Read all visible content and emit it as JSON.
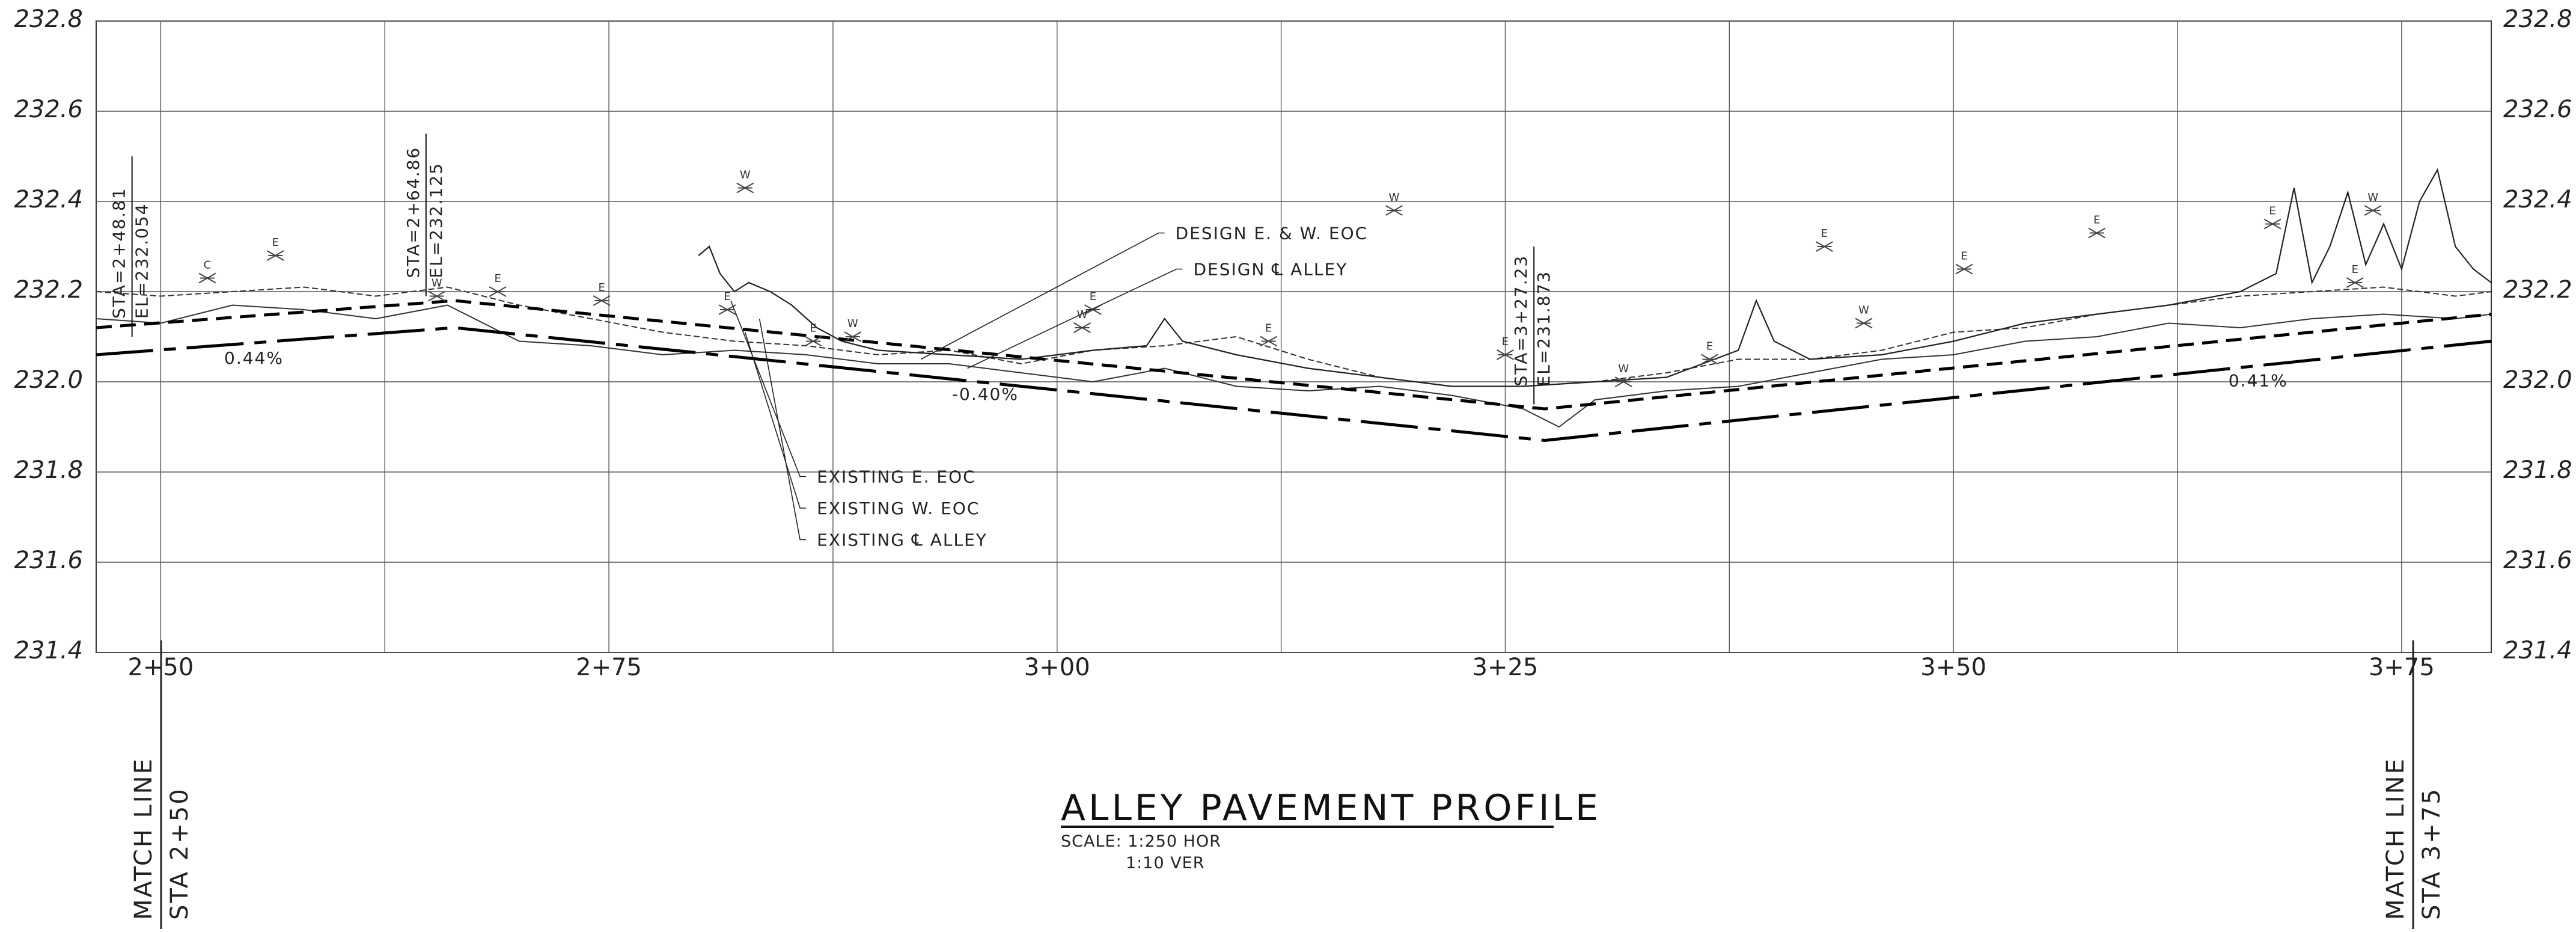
{
  "drawing": {
    "title": "ALLEY PAVEMENT PROFILE",
    "scale_line1": "SCALE: 1:250 HOR",
    "scale_line2": "1:10 VER",
    "match_left": {
      "line1": "MATCH LINE",
      "line2": "STA 2+50"
    },
    "match_right": {
      "line1": "MATCH LINE",
      "line2": "STA 3+75"
    }
  },
  "chart_data": {
    "type": "line",
    "ylim": [
      231.4,
      232.8
    ],
    "xlim": [
      248.2,
      315.0
    ],
    "y_ticks": [
      "232.8",
      "232.6",
      "232.4",
      "232.2",
      "232.0",
      "231.8",
      "231.6",
      "231.4"
    ],
    "y_tick_values": [
      232.8,
      232.6,
      232.4,
      232.2,
      232.0,
      231.8,
      231.6,
      231.4
    ],
    "x_ticks": [
      {
        "label": "2+50",
        "sta": 250
      },
      {
        "label": "2+75",
        "sta": 262.5
      },
      {
        "label": "3+00",
        "sta": 275
      },
      {
        "label": "3+25",
        "sta": 287.5
      },
      {
        "label": "3+50",
        "sta": 300
      },
      {
        "label": "3+75",
        "sta": 312.5
      }
    ],
    "x_gridlines": [
      250,
      256.25,
      262.5,
      268.75,
      275,
      281.25,
      287.5,
      293.75,
      300,
      306.25,
      312.5
    ],
    "grid": true,
    "series": [
      {
        "key": "design_eoc",
        "style": "dashed",
        "points": [
          [
            248.2,
            232.12
          ],
          [
            258.2,
            232.18
          ],
          [
            288.6,
            231.94
          ],
          [
            315.0,
            232.15
          ]
        ]
      },
      {
        "key": "design_cl",
        "style": "dashdot",
        "points": [
          [
            248.2,
            232.06
          ],
          [
            258.2,
            232.12
          ],
          [
            288.6,
            231.87
          ],
          [
            315.0,
            232.09
          ]
        ]
      }
    ],
    "slopes": [
      {
        "label": "0.44%",
        "sta": 252.6,
        "el": 232.04
      },
      {
        "label": "-0.40%",
        "sta": 273.0,
        "el": 231.96
      },
      {
        "label": "0.41%",
        "sta": 308.5,
        "el": 231.99
      }
    ],
    "pvi": [
      {
        "sta_label": "STA=2+48.81",
        "el_label": "EL=232.054",
        "sta": 249.2,
        "top": 232.5,
        "bottom": 232.1
      },
      {
        "sta_label": "STA=2+64.86",
        "el_label": "EL=232.125",
        "sta": 257.4,
        "top": 232.55,
        "bottom": 232.19
      },
      {
        "sta_label": "STA=3+27.23",
        "el_label": "EL=231.873",
        "sta": 288.3,
        "top": 232.3,
        "bottom": 231.95
      }
    ],
    "callouts": [
      {
        "text": "DESIGN E. & W. EOC",
        "sta": 278.3,
        "el": 232.33
      },
      {
        "text": "DESIGN ℄ ALLEY",
        "sta": 278.8,
        "el": 232.25
      },
      {
        "text": "EXISTING E. EOC",
        "sta": 268.3,
        "el": 231.79
      },
      {
        "text": "EXISTING W. EOC",
        "sta": 268.3,
        "el": 231.72
      },
      {
        "text": "EXISTING ℄ ALLEY",
        "sta": 268.3,
        "el": 231.65
      }
    ],
    "symbols": [
      {
        "letter": "C",
        "sta": 251.3,
        "el": 232.23
      },
      {
        "letter": "E",
        "sta": 253.2,
        "el": 232.28
      },
      {
        "letter": "W",
        "sta": 257.7,
        "el": 232.19
      },
      {
        "letter": "E",
        "sta": 259.4,
        "el": 232.2
      },
      {
        "letter": "E",
        "sta": 262.3,
        "el": 232.18
      },
      {
        "letter": "E",
        "sta": 265.8,
        "el": 232.16
      },
      {
        "letter": "W",
        "sta": 266.3,
        "el": 232.43
      },
      {
        "letter": "E",
        "sta": 268.2,
        "el": 232.09
      },
      {
        "letter": "W",
        "sta": 269.3,
        "el": 232.1
      },
      {
        "letter": "W",
        "sta": 275.7,
        "el": 232.12
      },
      {
        "letter": "E",
        "sta": 276.0,
        "el": 232.16
      },
      {
        "letter": "E",
        "sta": 280.9,
        "el": 232.09
      },
      {
        "letter": "W",
        "sta": 284.4,
        "el": 232.38
      },
      {
        "letter": "E",
        "sta": 287.5,
        "el": 232.06
      },
      {
        "letter": "W",
        "sta": 290.8,
        "el": 232.0
      },
      {
        "letter": "E",
        "sta": 293.2,
        "el": 232.05
      },
      {
        "letter": "E",
        "sta": 296.4,
        "el": 232.3
      },
      {
        "letter": "W",
        "sta": 297.5,
        "el": 232.13
      },
      {
        "letter": "E",
        "sta": 300.3,
        "el": 232.25
      },
      {
        "letter": "E",
        "sta": 304.0,
        "el": 232.33
      },
      {
        "letter": "E",
        "sta": 308.9,
        "el": 232.35
      },
      {
        "letter": "W",
        "sta": 311.7,
        "el": 232.38
      },
      {
        "letter": "E",
        "sta": 311.2,
        "el": 232.22
      }
    ],
    "existing_east_eoc": [
      [
        248.2,
        232.2
      ],
      [
        250,
        232.19
      ],
      [
        252,
        232.2
      ],
      [
        254,
        232.21
      ],
      [
        256,
        232.19
      ],
      [
        258,
        232.21
      ],
      [
        260,
        232.17
      ],
      [
        262,
        232.14
      ],
      [
        264,
        232.11
      ],
      [
        266,
        232.09
      ],
      [
        268,
        232.08
      ],
      [
        270,
        232.06
      ],
      [
        272,
        232.07
      ],
      [
        274,
        232.04
      ],
      [
        276,
        232.07
      ],
      [
        278,
        232.08
      ],
      [
        280,
        232.1
      ],
      [
        282,
        232.05
      ],
      [
        284,
        232.01
      ],
      [
        286,
        231.99
      ],
      [
        288,
        231.99
      ],
      [
        290,
        232.0
      ],
      [
        292,
        232.02
      ],
      [
        294,
        232.05
      ],
      [
        296,
        232.05
      ],
      [
        298,
        232.07
      ],
      [
        300,
        232.11
      ],
      [
        302,
        232.12
      ],
      [
        304,
        232.15
      ],
      [
        306,
        232.17
      ],
      [
        308,
        232.19
      ],
      [
        310,
        232.2
      ],
      [
        312,
        232.21
      ],
      [
        313,
        232.2
      ],
      [
        314,
        232.19
      ],
      [
        315,
        232.2
      ]
    ],
    "existing_west_eoc": [
      [
        248.2,
        232.14
      ],
      [
        250,
        232.13
      ],
      [
        252,
        232.17
      ],
      [
        254,
        232.16
      ],
      [
        256,
        232.14
      ],
      [
        258,
        232.17
      ],
      [
        260,
        232.09
      ],
      [
        262,
        232.08
      ],
      [
        264,
        232.06
      ],
      [
        266,
        232.07
      ],
      [
        268,
        232.06
      ],
      [
        270,
        232.04
      ],
      [
        272,
        232.04
      ],
      [
        274,
        232.02
      ],
      [
        276,
        232.0
      ],
      [
        278,
        232.03
      ],
      [
        280,
        231.99
      ],
      [
        282,
        231.98
      ],
      [
        284,
        231.99
      ],
      [
        286,
        231.97
      ],
      [
        288,
        231.94
      ],
      [
        289,
        231.9
      ],
      [
        290,
        231.96
      ],
      [
        292,
        231.98
      ],
      [
        294,
        231.99
      ],
      [
        296,
        232.02
      ],
      [
        298,
        232.05
      ],
      [
        300,
        232.06
      ],
      [
        302,
        232.09
      ],
      [
        304,
        232.1
      ],
      [
        306,
        232.13
      ],
      [
        308,
        232.12
      ],
      [
        310,
        232.14
      ],
      [
        312,
        232.15
      ],
      [
        314,
        232.14
      ],
      [
        315,
        232.15
      ]
    ],
    "existing_centerline": [
      [
        265.0,
        232.28
      ],
      [
        265.3,
        232.3
      ],
      [
        265.6,
        232.24
      ],
      [
        266,
        232.2
      ],
      [
        266.4,
        232.22
      ],
      [
        267,
        232.2
      ],
      [
        267.6,
        232.17
      ],
      [
        268.3,
        232.12
      ],
      [
        269,
        232.09
      ],
      [
        270,
        232.07
      ],
      [
        272,
        232.06
      ],
      [
        274,
        232.05
      ],
      [
        276,
        232.07
      ],
      [
        277.5,
        232.08
      ],
      [
        278,
        232.14
      ],
      [
        278.5,
        232.09
      ],
      [
        280,
        232.06
      ],
      [
        282,
        232.03
      ],
      [
        284,
        232.01
      ],
      [
        286,
        231.99
      ],
      [
        288,
        231.99
      ],
      [
        290,
        232.0
      ],
      [
        292,
        232.01
      ],
      [
        294,
        232.07
      ],
      [
        294.5,
        232.18
      ],
      [
        295,
        232.09
      ],
      [
        296,
        232.05
      ],
      [
        298,
        232.06
      ],
      [
        300,
        232.09
      ],
      [
        302,
        232.13
      ],
      [
        304,
        232.15
      ],
      [
        306,
        232.17
      ],
      [
        308,
        232.2
      ],
      [
        309,
        232.24
      ],
      [
        309.5,
        232.43
      ],
      [
        310,
        232.22
      ],
      [
        310.5,
        232.3
      ],
      [
        311,
        232.42
      ],
      [
        311.5,
        232.26
      ],
      [
        312,
        232.35
      ],
      [
        312.5,
        232.25
      ],
      [
        313,
        232.4
      ],
      [
        313.5,
        232.47
      ],
      [
        314,
        232.3
      ],
      [
        314.5,
        232.25
      ],
      [
        315,
        232.22
      ]
    ]
  }
}
